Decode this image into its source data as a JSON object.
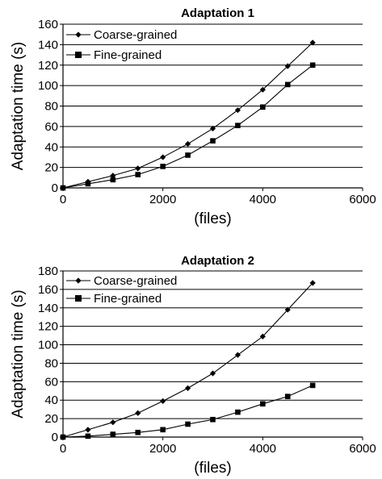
{
  "chart_data": [
    {
      "type": "line",
      "title": "Adaptation 1",
      "xlabel": "(files)",
      "ylabel": "Adaptation time (s)",
      "xlim": [
        0,
        6000
      ],
      "ylim": [
        0,
        160
      ],
      "xticks": [
        0,
        2000,
        4000,
        6000
      ],
      "yticks": [
        0,
        20,
        40,
        60,
        80,
        100,
        120,
        140,
        160
      ],
      "grid": "horizontal",
      "legend": "top-left",
      "x": [
        0,
        500,
        1000,
        1500,
        2000,
        2500,
        3000,
        3500,
        4000,
        4500,
        5000
      ],
      "series": [
        {
          "name": "Coarse-grained",
          "marker": "diamond",
          "values": [
            0,
            6,
            12,
            19,
            30,
            43,
            58,
            76,
            96,
            119,
            142
          ]
        },
        {
          "name": "Fine-grained",
          "marker": "square",
          "values": [
            0,
            4,
            8,
            13,
            21,
            32,
            46,
            61,
            79,
            101,
            120
          ]
        }
      ]
    },
    {
      "type": "line",
      "title": "Adaptation 2",
      "xlabel": "(files)",
      "ylabel": "Adaptation time (s)",
      "xlim": [
        0,
        6000
      ],
      "ylim": [
        0,
        180
      ],
      "xticks": [
        0,
        2000,
        4000,
        6000
      ],
      "yticks": [
        0,
        20,
        40,
        60,
        80,
        100,
        120,
        140,
        160,
        180
      ],
      "grid": "horizontal",
      "legend": "top-left",
      "x": [
        0,
        500,
        1000,
        1500,
        2000,
        2500,
        3000,
        3500,
        4000,
        4500,
        5000
      ],
      "series": [
        {
          "name": "Coarse-grained",
          "marker": "diamond",
          "values": [
            0,
            8,
            16,
            26,
            39,
            53,
            69,
            89,
            109,
            138,
            167
          ]
        },
        {
          "name": "Fine-grained",
          "marker": "square",
          "values": [
            0,
            1,
            3,
            5,
            8,
            14,
            19,
            27,
            36,
            44,
            56
          ]
        }
      ]
    }
  ]
}
